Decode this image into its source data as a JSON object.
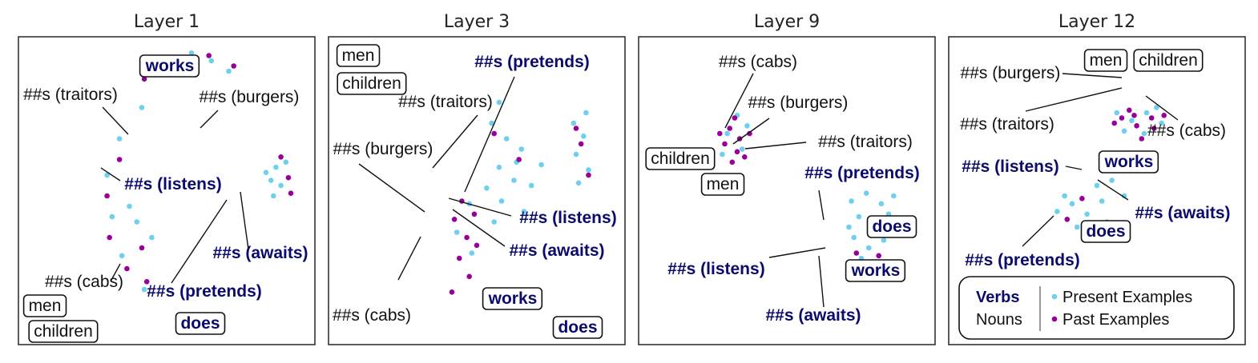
{
  "chart_data": [
    {
      "type": "scatter",
      "title": "Layer 1",
      "series": [
        {
          "name": "Present Examples",
          "color": "#6ecfef",
          "points": [
            [
              -1.0,
              3.2
            ],
            [
              -0.6,
              4.5
            ],
            [
              0.3,
              5.0
            ],
            [
              1.0,
              5.3
            ],
            [
              1.8,
              5.0
            ],
            [
              2.5,
              4.6
            ],
            [
              -1.9,
              2.0
            ],
            [
              -2.4,
              0.6
            ],
            [
              -2.2,
              -1.0
            ],
            [
              -1.8,
              -2.5
            ],
            [
              -0.9,
              -3.8
            ],
            [
              -0.6,
              -1.8
            ],
            [
              -1.2,
              -1.2
            ],
            [
              -1.5,
              -0.6
            ],
            [
              4.4,
              0.9
            ],
            [
              4.2,
              0.4
            ],
            [
              4.6,
              0.2
            ],
            [
              4.0,
              0.7
            ],
            [
              4.8,
              1.1
            ],
            [
              4.3,
              -0.2
            ]
          ]
        },
        {
          "name": "Past Examples",
          "color": "#990099",
          "points": [
            [
              -0.9,
              4.3
            ],
            [
              0.5,
              5.1
            ],
            [
              1.7,
              5.2
            ],
            [
              2.7,
              4.8
            ],
            [
              -1.9,
              1.2
            ],
            [
              -2.4,
              -0.2
            ],
            [
              -2.3,
              -1.8
            ],
            [
              -1.6,
              -3.0
            ],
            [
              -0.8,
              -3.5
            ],
            [
              -1.0,
              -2.2
            ],
            [
              4.9,
              0.5
            ],
            [
              4.6,
              1.3
            ],
            [
              5.0,
              -0.1
            ]
          ]
        }
      ],
      "annotations": [
        {
          "text": "works",
          "kind": "verb",
          "boxed": true
        },
        {
          "text": "##s (traitors)",
          "kind": "noun",
          "boxed": false
        },
        {
          "text": "##s (burgers)",
          "kind": "noun",
          "boxed": false
        },
        {
          "text": "##s (listens)",
          "kind": "verb",
          "boxed": false
        },
        {
          "text": "##s (awaits)",
          "kind": "verb",
          "boxed": false
        },
        {
          "text": "##s (pretends)",
          "kind": "verb",
          "boxed": false
        },
        {
          "text": "##s (cabs)",
          "kind": "noun",
          "boxed": false
        },
        {
          "text": "men",
          "kind": "noun",
          "boxed": true
        },
        {
          "text": "children",
          "kind": "noun",
          "boxed": true
        },
        {
          "text": "does",
          "kind": "verb",
          "boxed": true
        }
      ]
    },
    {
      "type": "scatter",
      "title": "Layer 3",
      "series": [
        {
          "name": "Present Examples",
          "color": "#6ecfef",
          "points": [
            [
              0.6,
              2.6
            ],
            [
              1.2,
              2.0
            ],
            [
              1.8,
              1.6
            ],
            [
              0.9,
              0.9
            ],
            [
              1.5,
              0.4
            ],
            [
              2.2,
              0.2
            ],
            [
              0.4,
              0.1
            ],
            [
              1.0,
              -0.4
            ],
            [
              1.9,
              -0.8
            ],
            [
              0.7,
              -1.2
            ],
            [
              -0.3,
              -0.5
            ],
            [
              -0.8,
              -1.6
            ],
            [
              -0.2,
              -2.4
            ],
            [
              0.9,
              3.4
            ],
            [
              1.6,
              1.1
            ],
            [
              2.6,
              1.0
            ],
            [
              3.9,
              2.6
            ],
            [
              4.3,
              2.1
            ],
            [
              4.0,
              1.4
            ],
            [
              4.5,
              0.8
            ],
            [
              4.1,
              0.3
            ],
            [
              4.4,
              3.0
            ]
          ]
        },
        {
          "name": "Past Examples",
          "color": "#990099",
          "points": [
            [
              -0.6,
              -0.4
            ],
            [
              -0.9,
              -1.1
            ],
            [
              -0.4,
              -1.8
            ],
            [
              -0.7,
              -2.6
            ],
            [
              -0.3,
              -3.3
            ],
            [
              -1.0,
              -3.9
            ],
            [
              -0.1,
              -0.9
            ],
            [
              0.0,
              -2.1
            ],
            [
              1.7,
              1.2
            ],
            [
              0.7,
              2.2
            ],
            [
              4.2,
              1.8
            ],
            [
              4.5,
              0.6
            ],
            [
              4.0,
              2.4
            ]
          ]
        }
      ],
      "annotations": [
        {
          "text": "men",
          "kind": "noun",
          "boxed": true
        },
        {
          "text": "children",
          "kind": "noun",
          "boxed": true
        },
        {
          "text": "##s (pretends)",
          "kind": "verb",
          "boxed": false
        },
        {
          "text": "##s (traitors)",
          "kind": "noun",
          "boxed": false
        },
        {
          "text": "##s (burgers)",
          "kind": "noun",
          "boxed": false
        },
        {
          "text": "##s (listens)",
          "kind": "verb",
          "boxed": false
        },
        {
          "text": "##s (awaits)",
          "kind": "verb",
          "boxed": false
        },
        {
          "text": "##s (cabs)",
          "kind": "noun",
          "boxed": false
        },
        {
          "text": "works",
          "kind": "verb",
          "boxed": true
        },
        {
          "text": "does",
          "kind": "verb",
          "boxed": true
        }
      ]
    },
    {
      "type": "scatter",
      "title": "Layer 9",
      "series": [
        {
          "name": "Present Examples",
          "color": "#6ecfef",
          "points": [
            [
              -2.4,
              2.2
            ],
            [
              -1.8,
              1.6
            ],
            [
              -2.0,
              2.9
            ],
            [
              -2.6,
              1.4
            ],
            [
              -1.6,
              2.5
            ],
            [
              2.6,
              -0.4
            ],
            [
              3.2,
              -0.1
            ],
            [
              3.8,
              -0.5
            ],
            [
              2.9,
              -1.0
            ],
            [
              3.5,
              -1.3
            ],
            [
              4.1,
              -0.9
            ],
            [
              2.7,
              -1.8
            ],
            [
              3.3,
              -2.2
            ],
            [
              3.9,
              -1.9
            ],
            [
              3.0,
              -2.6
            ],
            [
              3.6,
              -2.8
            ],
            [
              2.5,
              -1.4
            ],
            [
              4.3,
              -0.2
            ]
          ]
        },
        {
          "name": "Past Examples",
          "color": "#990099",
          "points": [
            [
              -2.3,
              2.4
            ],
            [
              -1.9,
              2.0
            ],
            [
              -2.5,
              1.8
            ],
            [
              -2.1,
              2.8
            ],
            [
              -1.7,
              1.3
            ],
            [
              -2.7,
              2.2
            ],
            [
              -2.0,
              1.5
            ],
            [
              -1.5,
              2.2
            ],
            [
              -2.2,
              1.1
            ],
            [
              3.4,
              -1.1
            ],
            [
              2.8,
              -2.4
            ],
            [
              3.7,
              -2.5
            ]
          ]
        }
      ],
      "annotations": [
        {
          "text": "##s (cabs)",
          "kind": "noun",
          "boxed": false
        },
        {
          "text": "##s (burgers)",
          "kind": "noun",
          "boxed": false
        },
        {
          "text": "##s (traitors)",
          "kind": "noun",
          "boxed": false
        },
        {
          "text": "children",
          "kind": "noun",
          "boxed": true
        },
        {
          "text": "men",
          "kind": "noun",
          "boxed": true
        },
        {
          "text": "##s (pretends)",
          "kind": "verb",
          "boxed": false
        },
        {
          "text": "does",
          "kind": "verb",
          "boxed": true
        },
        {
          "text": "##s (listens)",
          "kind": "verb",
          "boxed": false
        },
        {
          "text": "works",
          "kind": "verb",
          "boxed": true
        },
        {
          "text": "##s (awaits)",
          "kind": "verb",
          "boxed": false
        }
      ]
    },
    {
      "type": "scatter",
      "title": "Layer 12",
      "series": [
        {
          "name": "Present Examples",
          "color": "#6ecfef",
          "points": [
            [
              0.8,
              3.0
            ],
            [
              1.4,
              2.7
            ],
            [
              2.0,
              3.0
            ],
            [
              2.6,
              2.6
            ],
            [
              1.1,
              2.3
            ],
            [
              1.9,
              2.2
            ],
            [
              2.4,
              3.2
            ],
            [
              -1.6,
              -0.8
            ],
            [
              -1.0,
              -0.5
            ],
            [
              -0.4,
              -0.9
            ],
            [
              0.2,
              -0.4
            ],
            [
              0.6,
              0.4
            ],
            [
              0.9,
              1.0
            ],
            [
              0.4,
              -1.2
            ],
            [
              -0.8,
              -1.4
            ],
            [
              -1.3,
              -0.2
            ],
            [
              0.0,
              0.2
            ],
            [
              1.1,
              -0.2
            ]
          ]
        },
        {
          "name": "Past Examples",
          "color": "#990099",
          "points": [
            [
              1.0,
              2.8
            ],
            [
              1.6,
              2.5
            ],
            [
              2.2,
              2.8
            ],
            [
              1.3,
              3.1
            ],
            [
              1.8,
              2.0
            ],
            [
              2.7,
              2.9
            ],
            [
              0.7,
              2.6
            ],
            [
              2.3,
              2.4
            ],
            [
              1.5,
              2.9
            ],
            [
              -1.2,
              -1.1
            ],
            [
              -0.6,
              -0.3
            ]
          ]
        }
      ],
      "annotations": [
        {
          "text": "men",
          "kind": "noun",
          "boxed": true
        },
        {
          "text": "children",
          "kind": "noun",
          "boxed": true
        },
        {
          "text": "##s (burgers)",
          "kind": "noun",
          "boxed": false
        },
        {
          "text": "##s (traitors)",
          "kind": "noun",
          "boxed": false
        },
        {
          "text": "##s (cabs)",
          "kind": "noun",
          "boxed": false
        },
        {
          "text": "##s (listens)",
          "kind": "verb",
          "boxed": false
        },
        {
          "text": "works",
          "kind": "verb",
          "boxed": true
        },
        {
          "text": "##s (awaits)",
          "kind": "verb",
          "boxed": false
        },
        {
          "text": "does",
          "kind": "verb",
          "boxed": true
        },
        {
          "text": "##s (pretends)",
          "kind": "verb",
          "boxed": false
        }
      ]
    }
  ],
  "legend": {
    "placement": "bottom-right",
    "verbs_label": "Verbs",
    "nouns_label": "Nouns",
    "present_label": "Present Examples",
    "past_label": "Past Examples"
  },
  "colors": {
    "present": "#6ecfef",
    "past": "#990099",
    "verb_text": "#0b0b6e",
    "noun_text": "#111111"
  },
  "grid": false
}
